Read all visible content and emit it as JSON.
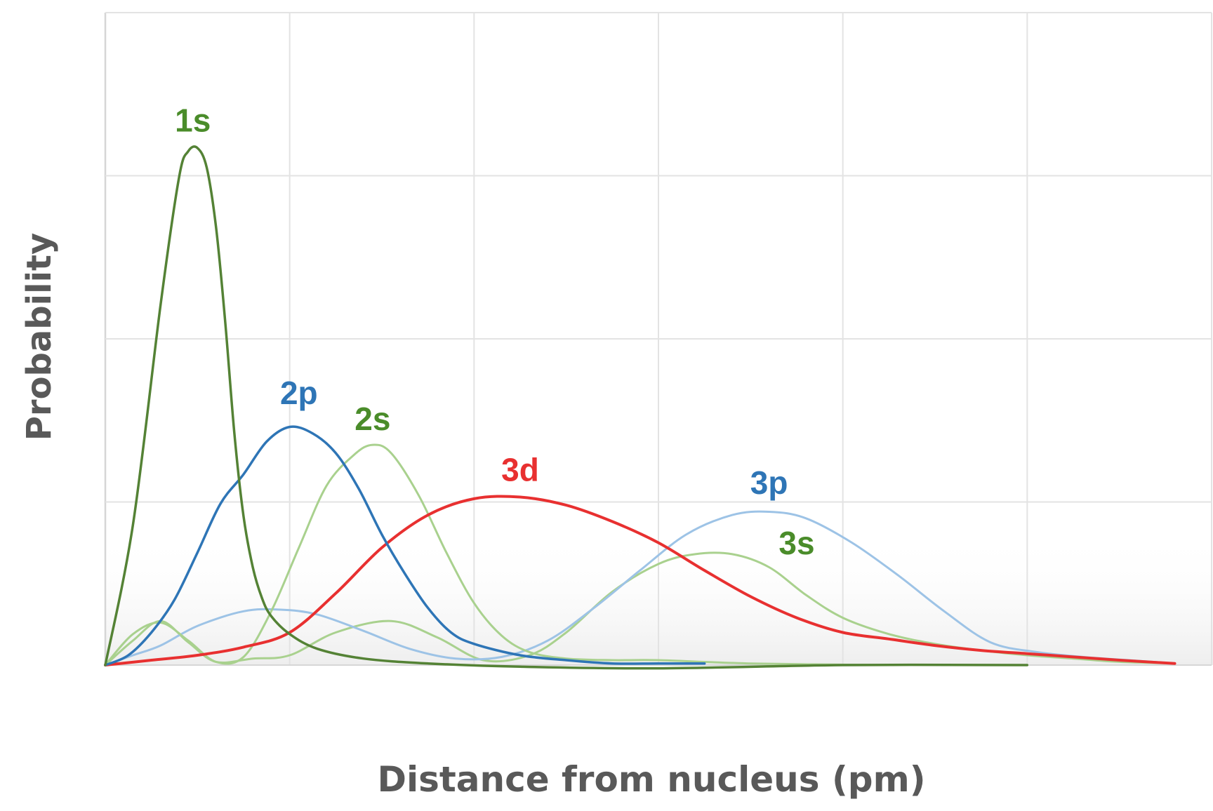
{
  "chart_data": {
    "type": "line",
    "title": "",
    "xlabel": "Distance from nucleus (pm)",
    "ylabel": "Probability",
    "xlim": [
      0,
      12
    ],
    "ylim": [
      0,
      4
    ],
    "x_ticks": [
      0,
      2,
      4,
      6,
      8,
      10,
      12
    ],
    "y_ticks": [
      0,
      1,
      2,
      3,
      4
    ],
    "grid": true,
    "legend": "none",
    "series": [
      {
        "name": "1s",
        "color": "#548235",
        "width": 3.5,
        "points": [
          [
            0,
            0
          ],
          [
            0.3,
            0.86
          ],
          [
            0.6,
            2.21
          ],
          [
            0.8,
            2.99
          ],
          [
            0.9,
            3.15
          ],
          [
            1.0,
            3.17
          ],
          [
            1.1,
            3.05
          ],
          [
            1.2,
            2.69
          ],
          [
            1.3,
            2.11
          ],
          [
            1.4,
            1.42
          ],
          [
            1.5,
            0.91
          ],
          [
            1.6,
            0.6
          ],
          [
            1.7,
            0.41
          ],
          [
            1.8,
            0.3
          ],
          [
            2.0,
            0.19
          ],
          [
            2.3,
            0.1
          ],
          [
            2.8,
            0.04
          ],
          [
            3.5,
            0.01
          ],
          [
            4.5,
            -0.01
          ],
          [
            6.0,
            -0.02
          ],
          [
            8.0,
            0
          ],
          [
            10.0,
            0
          ]
        ],
        "label": {
          "text": "1s",
          "x": 0.95,
          "y": 3.27
        }
      },
      {
        "name": "2p",
        "color": "#2e75b6",
        "width": 3.5,
        "points": [
          [
            0,
            0
          ],
          [
            0.25,
            0.06
          ],
          [
            0.5,
            0.2
          ],
          [
            0.75,
            0.4
          ],
          [
            1.0,
            0.69
          ],
          [
            1.25,
            0.99
          ],
          [
            1.5,
            1.17
          ],
          [
            1.75,
            1.37
          ],
          [
            2.0,
            1.46
          ],
          [
            2.25,
            1.42
          ],
          [
            2.5,
            1.3
          ],
          [
            2.75,
            1.08
          ],
          [
            3.0,
            0.8
          ],
          [
            3.25,
            0.56
          ],
          [
            3.5,
            0.35
          ],
          [
            3.75,
            0.2
          ],
          [
            4.0,
            0.13
          ],
          [
            4.5,
            0.06
          ],
          [
            5.0,
            0.03
          ],
          [
            5.5,
            0.01
          ],
          [
            6.0,
            0.01
          ],
          [
            6.5,
            0.01
          ]
        ],
        "label": {
          "text": "2p",
          "x": 2.1,
          "y": 1.6
        }
      },
      {
        "name": "2s",
        "color": "#a9d18e",
        "width": 3.0,
        "points": [
          [
            0,
            0
          ],
          [
            0.3,
            0.19
          ],
          [
            0.6,
            0.26
          ],
          [
            0.9,
            0.15
          ],
          [
            1.2,
            0.02
          ],
          [
            1.5,
            0.05
          ],
          [
            1.8,
            0.33
          ],
          [
            2.1,
            0.72
          ],
          [
            2.4,
            1.1
          ],
          [
            2.7,
            1.29
          ],
          [
            2.9,
            1.35
          ],
          [
            3.1,
            1.3
          ],
          [
            3.4,
            1.04
          ],
          [
            3.7,
            0.69
          ],
          [
            4.0,
            0.38
          ],
          [
            4.3,
            0.18
          ],
          [
            4.6,
            0.08
          ],
          [
            5.0,
            0.04
          ],
          [
            5.5,
            0.03
          ],
          [
            6.0,
            0.03
          ],
          [
            7.0,
            0.01
          ],
          [
            8.4,
            0
          ]
        ],
        "label": {
          "text": "2s",
          "x": 2.9,
          "y": 1.44
        }
      },
      {
        "name": "3d",
        "color": "#e83030",
        "width": 4.0,
        "points": [
          [
            0,
            0
          ],
          [
            0.5,
            0.03
          ],
          [
            1.0,
            0.06
          ],
          [
            1.5,
            0.11
          ],
          [
            2.0,
            0.2
          ],
          [
            2.5,
            0.44
          ],
          [
            3.0,
            0.72
          ],
          [
            3.5,
            0.92
          ],
          [
            4.0,
            1.02
          ],
          [
            4.5,
            1.03
          ],
          [
            5.0,
            0.98
          ],
          [
            5.5,
            0.88
          ],
          [
            6.0,
            0.75
          ],
          [
            6.5,
            0.58
          ],
          [
            7.0,
            0.42
          ],
          [
            7.5,
            0.29
          ],
          [
            8.0,
            0.2
          ],
          [
            8.5,
            0.16
          ],
          [
            9.0,
            0.12
          ],
          [
            9.5,
            0.09
          ],
          [
            10.0,
            0.07
          ],
          [
            10.5,
            0.05
          ],
          [
            11.0,
            0.03
          ],
          [
            11.6,
            0.01
          ]
        ],
        "label": {
          "text": "3d",
          "x": 4.5,
          "y": 1.13
        }
      },
      {
        "name": "3p",
        "color": "#9dc3e6",
        "width": 3.0,
        "points": [
          [
            0,
            0
          ],
          [
            0.3,
            0.06
          ],
          [
            0.6,
            0.12
          ],
          [
            1.0,
            0.24
          ],
          [
            1.5,
            0.33
          ],
          [
            1.9,
            0.34
          ],
          [
            2.3,
            0.31
          ],
          [
            2.8,
            0.21
          ],
          [
            3.3,
            0.1
          ],
          [
            3.8,
            0.04
          ],
          [
            4.3,
            0.05
          ],
          [
            4.8,
            0.15
          ],
          [
            5.3,
            0.35
          ],
          [
            5.8,
            0.58
          ],
          [
            6.3,
            0.8
          ],
          [
            6.8,
            0.92
          ],
          [
            7.2,
            0.94
          ],
          [
            7.6,
            0.9
          ],
          [
            8.1,
            0.75
          ],
          [
            8.6,
            0.55
          ],
          [
            9.1,
            0.33
          ],
          [
            9.6,
            0.14
          ],
          [
            10.1,
            0.08
          ],
          [
            10.6,
            0.05
          ],
          [
            11.1,
            0.03
          ],
          [
            11.6,
            0.01
          ]
        ],
        "label": {
          "text": "3p",
          "x": 7.2,
          "y": 1.05
        }
      },
      {
        "name": "3s",
        "color": "#a9d18e",
        "width": 3.0,
        "points": [
          [
            0,
            0
          ],
          [
            0.3,
            0.15
          ],
          [
            0.6,
            0.27
          ],
          [
            0.9,
            0.14
          ],
          [
            1.2,
            0.02
          ],
          [
            1.6,
            0.04
          ],
          [
            2.0,
            0.06
          ],
          [
            2.5,
            0.2
          ],
          [
            3.1,
            0.27
          ],
          [
            3.6,
            0.17
          ],
          [
            4.1,
            0.03
          ],
          [
            4.6,
            0.06
          ],
          [
            5.0,
            0.2
          ],
          [
            5.5,
            0.45
          ],
          [
            6.0,
            0.62
          ],
          [
            6.4,
            0.68
          ],
          [
            6.8,
            0.68
          ],
          [
            7.2,
            0.6
          ],
          [
            7.6,
            0.43
          ],
          [
            8.0,
            0.29
          ],
          [
            8.5,
            0.19
          ],
          [
            9.0,
            0.13
          ],
          [
            9.5,
            0.09
          ],
          [
            10.0,
            0.06
          ],
          [
            10.5,
            0.04
          ],
          [
            11.0,
            0.02
          ],
          [
            11.6,
            0.01
          ]
        ],
        "label": {
          "text": "3s",
          "x": 7.5,
          "y": 0.68
        }
      }
    ]
  },
  "label_colors": {
    "1s": "#4a8c2a",
    "2p": "#2e75b6",
    "2s": "#4a8c2a",
    "3d": "#e83030",
    "3p": "#2e75b6",
    "3s": "#4a8c2a"
  },
  "grid_color": "#e3e3e3",
  "axis_title_color": "#595959"
}
